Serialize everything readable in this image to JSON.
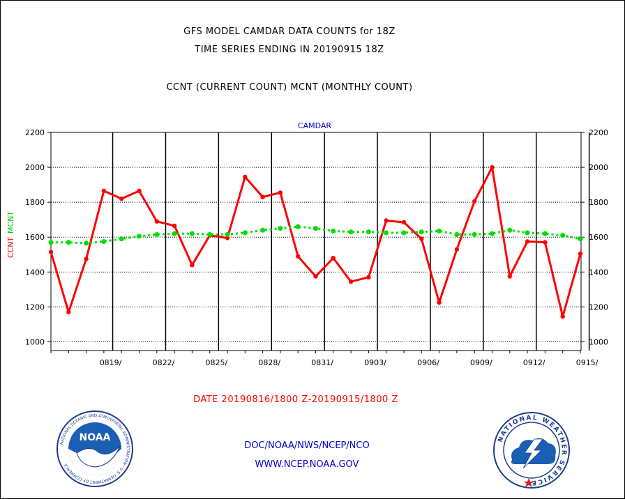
{
  "header": {
    "line1": "GFS MODEL CAMDAR DATA COUNTS for 18Z",
    "line2": "TIME SERIES ENDING IN 20190915 18Z",
    "line3": "CCNT (CURRENT COUNT) MCNT (MONTHLY COUNT)"
  },
  "footer": {
    "date_range": "DATE 20190816/1800 Z-20190915/1800 Z",
    "agency": "DOC/NOAA/NWS/NCEP/NCO",
    "website": "WWW.NCEP.NOAA.GOV"
  },
  "logos": {
    "left": "noaa-logo",
    "left_text": "NOAA",
    "left_ring": "NATIONAL OCEANIC AND ATMOSPHERIC ADMINISTRATION · U.S. DEPARTMENT OF COMMERCE",
    "right": "nws-logo",
    "right_ring": "NATIONAL WEATHER SERVICE"
  },
  "chart_data": {
    "type": "line",
    "subtitle": "CAMDAR",
    "ylabel_primary": "CCNT",
    "ylabel_secondary": "MCNT",
    "ylim": [
      950,
      2200
    ],
    "y_ticks": [
      1000,
      1200,
      1400,
      1600,
      1800,
      2000,
      2200
    ],
    "x_tick_labels": [
      "0819/",
      "0822/",
      "0825/",
      "0828/",
      "0831/",
      "0903/",
      "0906/",
      "0909/",
      "0912/",
      "0915/"
    ],
    "grid": true,
    "x_days": [
      "0816",
      "0817",
      "0818",
      "0819",
      "0820",
      "0821",
      "0822",
      "0823",
      "0824",
      "0825",
      "0826",
      "0827",
      "0828",
      "0829",
      "0830",
      "0831",
      "0901",
      "0902",
      "0903",
      "0904",
      "0905",
      "0906",
      "0907",
      "0908",
      "0909",
      "0910",
      "0911",
      "0912",
      "0913",
      "0914",
      "0915"
    ],
    "series": [
      {
        "name": "CCNT",
        "color": "#ff0000",
        "values": [
          1515,
          1170,
          1475,
          1865,
          1820,
          1865,
          1690,
          1665,
          1440,
          1610,
          1595,
          1945,
          1830,
          1855,
          1490,
          1375,
          1480,
          1345,
          1370,
          1695,
          1685,
          1590,
          1225,
          1530,
          1805,
          2000,
          1375,
          1575,
          1570,
          1145,
          1505
        ]
      },
      {
        "name": "MCNT",
        "color": "#00dd00",
        "values": [
          1570,
          1570,
          1565,
          1575,
          1590,
          1605,
          1615,
          1620,
          1620,
          1615,
          1615,
          1625,
          1640,
          1650,
          1660,
          1650,
          1635,
          1630,
          1630,
          1625,
          1625,
          1630,
          1635,
          1615,
          1615,
          1620,
          1640,
          1625,
          1620,
          1610,
          1590
        ]
      }
    ]
  }
}
